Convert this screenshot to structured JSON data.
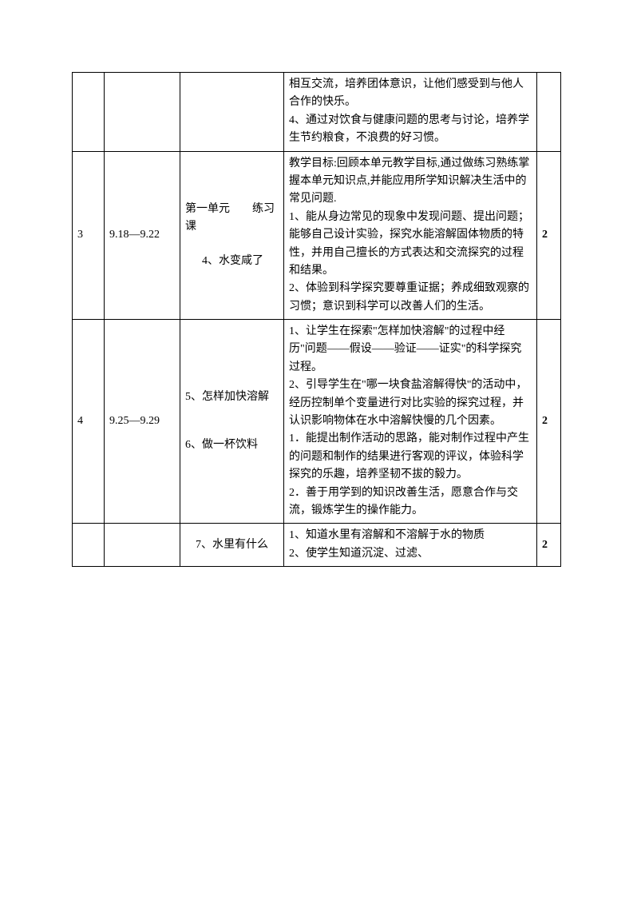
{
  "table": {
    "rows": [
      {
        "num": "",
        "date": "",
        "topic": "",
        "content": "相互交流，培养团体意识，让他们感受到与他人合作的快乐。\n4、通过对饮食与健康问题的思考与讨论，培养学生节约粮食，不浪费的好习惯。",
        "hours": ""
      },
      {
        "num": "3",
        "date": "9.18—9.22",
        "topic_line1": "第一单元　　练习课",
        "topic_line2": "4、水变咸了",
        "content": "教学目标:回顾本单元教学目标,通过做练习熟练掌握本单元知识点,并能应用所学知识解决生活中的常见问题.\n1、能从身边常见的现象中发现问题、提出问题；能够自己设计实验，探究水能溶解固体物质的特性，并用自己擅长的方式表达和交流探究的过程和结果。\n2、体验到科学探究要尊重证据；养成细致观察的习惯；意识到科学可以改善人们的生活。",
        "hours": "2"
      },
      {
        "num": "4",
        "date": "9.25—9.29",
        "topic_line1": "5、怎样加快溶解",
        "topic_line2": "6、做一杯饮料",
        "content": "1、让学生在探索\"怎样加快溶解\"的过程中经历\"问题——假设——验证——证实\"的科学探究过程。\n2、引导学生在\"哪一块食盐溶解得快\"的活动中，经历控制单个变量进行对比实验的探究过程，并认识影响物体在水中溶解快慢的几个因素。\n1．能提出制作活动的思路，能对制作过程中产生的问题和制作的结果进行客观的评议，体验科学探究的乐趣，培养坚韧不拔的毅力。\n2．善于用学到的知识改善生活，愿意合作与交流，锻炼学生的操作能力。",
        "hours": "2"
      },
      {
        "num": "",
        "date": "",
        "topic": "7、水里有什么",
        "content": "1、知道水里有溶解和不溶解于水的物质\n2、使学生知道沉淀、过滤、",
        "hours": "2"
      }
    ]
  }
}
